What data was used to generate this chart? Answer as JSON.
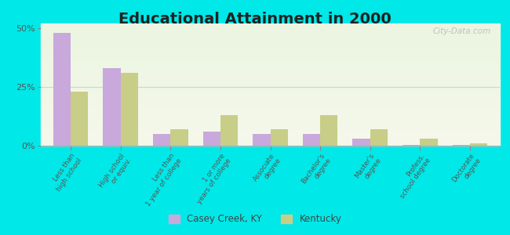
{
  "title": "Educational Attainment in 2000",
  "categories": [
    "Less than\nhigh school",
    "High school\nor equiv.",
    "Less than\n1 year of college",
    "1 or more\nyears of college",
    "Associate\ndegree",
    "Bachelor's\ndegree",
    "Master's\ndegree",
    "Profess.\nschool degree",
    "Doctorate\ndegree"
  ],
  "casey_creek": [
    48,
    33,
    5,
    6,
    5,
    5,
    3,
    0.5,
    0.5
  ],
  "kentucky": [
    23,
    31,
    7,
    13,
    7,
    13,
    7,
    3,
    1
  ],
  "casey_color": "#c9a8dc",
  "kentucky_color": "#c8cd88",
  "background_outer": "#00e8e8",
  "ylim": [
    0,
    52
  ],
  "yticks": [
    0,
    25,
    50
  ],
  "ytick_labels": [
    "0%",
    "25%",
    "50%"
  ],
  "bar_width": 0.35,
  "title_fontsize": 14,
  "legend_labels": [
    "Casey Creek, KY",
    "Kentucky"
  ],
  "watermark": "City-Data.com"
}
